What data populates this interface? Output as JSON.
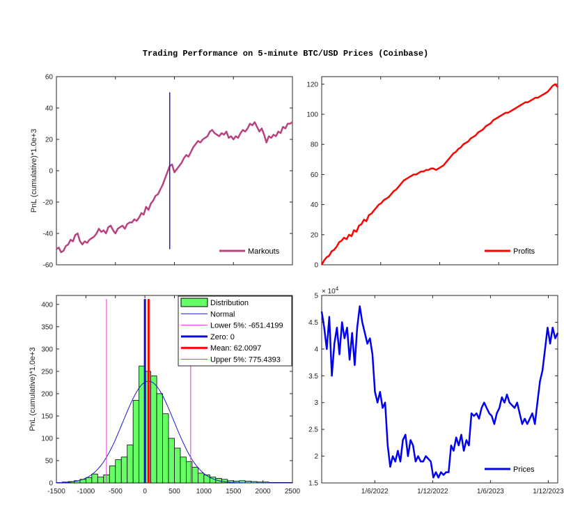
{
  "title": "Trading Performance on 5-minute BTC/USD Prices (Coinbase)",
  "chart_data": [
    {
      "id": "markouts",
      "type": "line",
      "ylabel": "PnL (cumulative)*1.0e+3",
      "ylim": [
        -60,
        60
      ],
      "yticks": [
        -60,
        -40,
        -20,
        0,
        20,
        40,
        60
      ],
      "color": "#b8417f",
      "series": [
        {
          "name": "Markouts",
          "values": [
            -50,
            -49,
            -52,
            -51,
            -48,
            -47,
            -44,
            -45,
            -41,
            -40,
            -45,
            -47,
            -45,
            -46,
            -44,
            -43,
            -42,
            -40,
            -37,
            -39,
            -38,
            -40,
            -36,
            -35,
            -38,
            -40,
            -37,
            -36,
            -35,
            -37,
            -34,
            -33,
            -33,
            -31,
            -32,
            -30,
            -27,
            -28,
            -23,
            -25,
            -21,
            -19,
            -16,
            -15,
            -12,
            -9,
            -5,
            -1,
            3,
            4,
            -1,
            1,
            3,
            5,
            8,
            10,
            9,
            12,
            15,
            17,
            19,
            18,
            20,
            21,
            22,
            25,
            26,
            24,
            23,
            22,
            24,
            23,
            25,
            21,
            22,
            20,
            22,
            21,
            24,
            26,
            25,
            27,
            30,
            29,
            31,
            28,
            25,
            27,
            23,
            18,
            22,
            21,
            23,
            22,
            25,
            24,
            28,
            27,
            30,
            30,
            31
          ]
        }
      ],
      "vline": {
        "x_fraction": 0.48,
        "y": [
          -50,
          50
        ],
        "color": "#1a1acc"
      },
      "legend": "bottom-right"
    },
    {
      "id": "profits",
      "type": "line",
      "ylim": [
        0,
        125
      ],
      "yticks": [
        0,
        20,
        40,
        60,
        80,
        100,
        120
      ],
      "color": "#ff0000",
      "series": [
        {
          "name": "Profits",
          "values": [
            0,
            3,
            5,
            6,
            9,
            10,
            12,
            15,
            16,
            18,
            17,
            20,
            19,
            23,
            22,
            26,
            27,
            30,
            29,
            33,
            34,
            36,
            38,
            40,
            41,
            43,
            44,
            45,
            47,
            49,
            50,
            52,
            54,
            56,
            57,
            58,
            59,
            60,
            60,
            61,
            62,
            62,
            63,
            63,
            64,
            64,
            63,
            64,
            65,
            66,
            68,
            70,
            72,
            74,
            75,
            77,
            78,
            80,
            81,
            82,
            84,
            85,
            86,
            88,
            89,
            90,
            92,
            93,
            94,
            96,
            97,
            98,
            99,
            100,
            101,
            101,
            102,
            103,
            104,
            105,
            106,
            107,
            108,
            108,
            109,
            110,
            111,
            111,
            112,
            113,
            114,
            115,
            117,
            119,
            120,
            118
          ]
        }
      ],
      "legend": "bottom-right"
    },
    {
      "id": "distribution",
      "type": "bar",
      "ylabel": "PnL (cumulative)*1.0e+3",
      "xlim": [
        -1500,
        2500
      ],
      "ylim": [
        0,
        420
      ],
      "xticks": [
        -1500,
        -1000,
        -500,
        0,
        500,
        1000,
        1500,
        2000,
        2500
      ],
      "yticks": [
        0,
        50,
        100,
        150,
        200,
        250,
        300,
        350,
        400
      ],
      "bins_start": -1500,
      "bin_width": 100,
      "values": [
        1,
        2,
        3,
        5,
        8,
        12,
        20,
        13,
        18,
        38,
        52,
        58,
        85,
        185,
        262,
        250,
        240,
        200,
        155,
        100,
        78,
        58,
        48,
        35,
        22,
        18,
        13,
        10,
        8,
        5,
        4,
        5,
        4,
        3,
        2,
        2,
        1,
        1,
        1,
        1
      ],
      "normal_curve": {
        "mean": 62,
        "sd": 430,
        "peak": 228
      },
      "lines": [
        {
          "name": "Lower 5%: -651.4199",
          "x": -651.4199,
          "color": "#e633e6",
          "width": 1
        },
        {
          "name": "Zero: 0",
          "x": 0,
          "color": "#0a0ad9",
          "width": 3
        },
        {
          "name": "Mean: 62.0097",
          "x": 62.0097,
          "color": "#ff0000",
          "width": 3
        },
        {
          "name": "Upper 5%: 775.4393",
          "x": 775.4393,
          "color": "#e633e6",
          "width": 1
        }
      ],
      "legend_items": [
        {
          "label": "Distribution",
          "kind": "patch",
          "color": "#66ff66"
        },
        {
          "label": "Normal",
          "kind": "line",
          "color": "#1a1acc",
          "width": 1
        },
        {
          "label": "Lower 5%: -651.4199",
          "kind": "line",
          "color": "#e633e6",
          "width": 1
        },
        {
          "label": "Zero: 0",
          "kind": "line",
          "color": "#0a0ad9",
          "width": 3
        },
        {
          "label": "Mean: 62.0097",
          "kind": "line",
          "color": "#ff0000",
          "width": 3
        },
        {
          "label": "Upper 5%: 775.4393",
          "kind": "line",
          "color": "#e633e6",
          "width": 1
        }
      ],
      "legend": "top-right"
    },
    {
      "id": "prices",
      "type": "line",
      "ylim": [
        1.5,
        5
      ],
      "yticks": [
        1.5,
        2,
        2.5,
        3,
        3.5,
        4,
        4.5,
        5
      ],
      "exponent_label": "× 10",
      "exponent": "4",
      "xticks": [
        {
          "label": "1/6/2022",
          "x_fraction": 0.225
        },
        {
          "label": "1/12/2022",
          "x_fraction": 0.47
        },
        {
          "label": "1/6/2023",
          "x_fraction": 0.715
        },
        {
          "label": "1/12/2023",
          "x_fraction": 0.96
        }
      ],
      "color": "#0000ee",
      "series": [
        {
          "name": "Prices",
          "values": [
            4.7,
            4.4,
            4.0,
            4.6,
            3.5,
            4.1,
            4.4,
            3.9,
            4.5,
            4.2,
            4.4,
            3.8,
            4.3,
            3.7,
            4.4,
            4.8,
            4.5,
            4.3,
            4.1,
            4.2,
            3.9,
            3.2,
            3.0,
            3.2,
            2.9,
            3.0,
            2.2,
            1.8,
            2.0,
            1.9,
            2.1,
            1.9,
            2.3,
            2.4,
            2.0,
            2.3,
            2.2,
            1.9,
            2.0,
            1.9,
            1.9,
            2.0,
            1.95,
            1.9,
            1.6,
            1.7,
            1.6,
            1.7,
            1.65,
            1.7,
            1.7,
            2.2,
            2.1,
            2.35,
            2.2,
            2.4,
            2.1,
            2.3,
            2.2,
            2.8,
            2.75,
            2.8,
            2.7,
            2.9,
            3.0,
            2.9,
            2.8,
            2.75,
            2.6,
            2.8,
            2.9,
            3.1,
            3.0,
            3.15,
            3.0,
            2.95,
            2.9,
            3.0,
            2.8,
            2.6,
            2.7,
            2.6,
            2.7,
            2.8,
            2.6,
            3.0,
            3.4,
            3.6,
            4.0,
            4.4,
            4.1,
            4.4,
            4.2,
            4.3
          ]
        }
      ],
      "legend": "bottom-right"
    }
  ]
}
